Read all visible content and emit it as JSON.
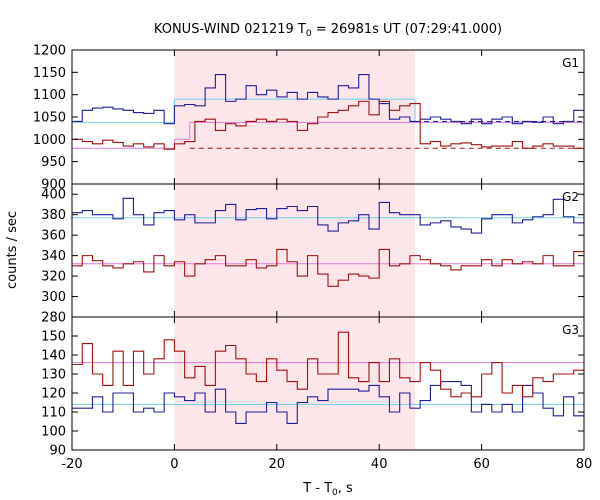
{
  "colors": {
    "series_blue": "#1f1f9a",
    "series_red": "#a01010",
    "fit_cyan": "#6fd0e8",
    "fit_magenta": "#e07ad8",
    "shade": "#fde6ea"
  },
  "chart_data": {
    "type": "line",
    "title": "KONUS-WIND 021219 T",
    "title_sub": "0",
    "title_tail": " = 26981s UT (07:29:41.000)",
    "xlabel": "T - T",
    "xlabel_sub": "0",
    "xlabel_tail": ", s",
    "ylabel": "counts / sec",
    "xlim": [
      -20,
      80
    ],
    "xticks": [
      -20,
      0,
      20,
      40,
      60,
      80
    ],
    "shaded_interval": [
      0,
      47
    ],
    "panels": [
      {
        "name": "G1",
        "ylim": [
          900,
          1200
        ],
        "yticks": [
          900,
          950,
          1000,
          1050,
          1100,
          1150,
          1200
        ],
        "series": [
          {
            "color": "series_blue",
            "x": [
              -20,
              -18,
              -16,
              -14,
              -12,
              -10,
              -8,
              -6,
              -4,
              -2,
              0,
              2,
              4,
              6,
              8,
              10,
              12,
              14,
              16,
              18,
              20,
              22,
              24,
              26,
              28,
              30,
              32,
              34,
              36,
              38,
              40,
              42,
              44,
              46,
              48,
              50,
              52,
              54,
              56,
              58,
              60,
              62,
              64,
              66,
              68,
              70,
              72,
              74,
              76,
              78,
              80
            ],
            "y": [
              1040,
              1065,
              1070,
              1072,
              1068,
              1065,
              1060,
              1058,
              1065,
              1035,
              1075,
              1078,
              1075,
              1115,
              1145,
              1085,
              1090,
              1120,
              1100,
              1110,
              1095,
              1105,
              1090,
              1105,
              1095,
              1090,
              1120,
              1115,
              1145,
              1090,
              1080,
              1045,
              1050,
              1040,
              1045,
              1050,
              1045,
              1040,
              1035,
              1045,
              1035,
              1045,
              1050,
              1035,
              1040,
              1038,
              1050,
              1035,
              1040,
              1065,
              1065
            ]
          },
          {
            "color": "series_red",
            "x": [
              -20,
              -18,
              -16,
              -14,
              -12,
              -10,
              -8,
              -6,
              -4,
              -2,
              0,
              2,
              4,
              6,
              8,
              10,
              12,
              14,
              16,
              18,
              20,
              22,
              24,
              26,
              28,
              30,
              32,
              34,
              36,
              38,
              40,
              42,
              44,
              46,
              48,
              50,
              52,
              54,
              56,
              58,
              60,
              62,
              64,
              66,
              68,
              70,
              72,
              74,
              76,
              78,
              80
            ],
            "y": [
              1000,
              995,
              990,
              998,
              993,
              985,
              990,
              983,
              990,
              978,
              990,
              995,
              1040,
              1045,
              1020,
              1035,
              1030,
              1040,
              1045,
              1040,
              1045,
              1040,
              1020,
              1035,
              1050,
              1060,
              1065,
              1075,
              1085,
              1055,
              1085,
              1065,
              1075,
              1080,
              990,
              995,
              985,
              990,
              992,
              988,
              983,
              985,
              985,
              995,
              980,
              985,
              990,
              985,
              985,
              980,
              980
            ]
          }
        ],
        "fits": [
          {
            "color": "fit_cyan",
            "dash": false,
            "segments": [
              [
                -20,
                0,
                1038
              ],
              [
                0,
                3,
                1090
              ],
              [
                3,
                47,
                1090
              ],
              [
                47,
                80,
                1038
              ]
            ]
          },
          {
            "color": "fit_magenta",
            "dash": false,
            "segments": [
              [
                -20,
                0,
                980
              ],
              [
                0,
                3,
                1000
              ],
              [
                3,
                47,
                1038
              ],
              [
                47,
                80,
                1038
              ]
            ]
          },
          {
            "color": "series_blue",
            "dash": true,
            "segments": [
              [
                47,
                80,
                1040
              ]
            ]
          },
          {
            "color": "series_red",
            "dash": true,
            "segments": [
              [
                3,
                80,
                980
              ]
            ]
          }
        ]
      },
      {
        "name": "G2",
        "ylim": [
          280,
          410
        ],
        "yticks": [
          280,
          300,
          320,
          340,
          360,
          380,
          400
        ],
        "series": [
          {
            "color": "series_blue",
            "x": [
              -20,
              -18,
              -16,
              -14,
              -12,
              -10,
              -8,
              -6,
              -4,
              -2,
              0,
              2,
              4,
              6,
              8,
              10,
              12,
              14,
              16,
              18,
              20,
              22,
              24,
              26,
              28,
              30,
              32,
              34,
              36,
              38,
              40,
              42,
              44,
              46,
              48,
              50,
              52,
              54,
              56,
              58,
              60,
              62,
              64,
              66,
              68,
              70,
              72,
              74,
              76,
              78,
              80
            ],
            "y": [
              382,
              384,
              380,
              380,
              376,
              396,
              380,
              370,
              382,
              384,
              375,
              380,
              372,
              372,
              384,
              390,
              375,
              385,
              386,
              376,
              386,
              388,
              384,
              388,
              370,
              364,
              372,
              374,
              380,
              366,
              392,
              382,
              380,
              380,
              370,
              372,
              374,
              368,
              366,
              362,
              376,
              380,
              380,
              372,
              375,
              378,
              380,
              395,
              378,
              372,
              370
            ]
          },
          {
            "color": "series_red",
            "x": [
              -20,
              -18,
              -16,
              -14,
              -12,
              -10,
              -8,
              -6,
              -4,
              -2,
              0,
              2,
              4,
              6,
              8,
              10,
              12,
              14,
              16,
              18,
              20,
              22,
              24,
              26,
              28,
              30,
              32,
              34,
              36,
              38,
              40,
              42,
              44,
              46,
              48,
              50,
              52,
              54,
              56,
              58,
              60,
              62,
              64,
              66,
              68,
              70,
              72,
              74,
              76,
              78,
              80
            ],
            "y": [
              330,
              340,
              335,
              330,
              328,
              332,
              334,
              324,
              340,
              330,
              334,
              320,
              332,
              336,
              340,
              330,
              330,
              336,
              328,
              330,
              346,
              334,
              320,
              340,
              322,
              310,
              316,
              322,
              320,
              318,
              346,
              330,
              332,
              340,
              336,
              332,
              330,
              326,
              330,
              330,
              336,
              330,
              336,
              332,
              334,
              332,
              340,
              330,
              330,
              344,
              330
            ]
          }
        ],
        "fits": [
          {
            "color": "fit_cyan",
            "dash": false,
            "segments": [
              [
                -20,
                80,
                377
              ]
            ]
          },
          {
            "color": "fit_magenta",
            "dash": false,
            "segments": [
              [
                -20,
                80,
                332
              ]
            ]
          }
        ]
      },
      {
        "name": "G3",
        "ylim": [
          90,
          160
        ],
        "yticks": [
          90,
          100,
          110,
          120,
          130,
          140,
          150
        ],
        "series": [
          {
            "color": "series_blue",
            "x": [
              -20,
              -18,
              -16,
              -14,
              -12,
              -10,
              -8,
              -6,
              -4,
              -2,
              0,
              2,
              4,
              6,
              8,
              10,
              12,
              14,
              16,
              18,
              20,
              22,
              24,
              26,
              28,
              30,
              32,
              34,
              36,
              38,
              40,
              42,
              44,
              46,
              48,
              50,
              52,
              54,
              56,
              58,
              60,
              62,
              64,
              66,
              68,
              70,
              72,
              74,
              76,
              78,
              80
            ],
            "y": [
              112,
              112,
              118,
              110,
              120,
              120,
              110,
              112,
              110,
              120,
              118,
              116,
              120,
              110,
              122,
              110,
              104,
              110,
              110,
              115,
              110,
              104,
              115,
              118,
              116,
              122,
              122,
              122,
              121,
              124,
              118,
              110,
              120,
              112,
              116,
              124,
              126,
              126,
              124,
              110,
              114,
              110,
              114,
              110,
              124,
              120,
              112,
              108,
              118,
              108,
              110
            ]
          },
          {
            "color": "series_red",
            "x": [
              -20,
              -18,
              -16,
              -14,
              -12,
              -10,
              -8,
              -6,
              -4,
              -2,
              0,
              2,
              4,
              6,
              8,
              10,
              12,
              14,
              16,
              18,
              20,
              22,
              24,
              26,
              28,
              30,
              32,
              34,
              36,
              38,
              40,
              42,
              44,
              46,
              48,
              50,
              52,
              54,
              56,
              58,
              60,
              62,
              64,
              66,
              68,
              70,
              72,
              74,
              76,
              78,
              80
            ],
            "y": [
              135,
              146,
              130,
              124,
              142,
              124,
              142,
              130,
              138,
              148,
              142,
              128,
              134,
              124,
              142,
              145,
              138,
              130,
              126,
              138,
              132,
              126,
              122,
              138,
              130,
              130,
              152,
              128,
              126,
              136,
              126,
              138,
              128,
              126,
              136,
              132,
              122,
              118,
              120,
              118,
              130,
              136,
              120,
              124,
              118,
              128,
              126,
              130,
              130,
              132,
              148
            ]
          }
        ],
        "fits": [
          {
            "color": "fit_cyan",
            "dash": false,
            "segments": [
              [
                -20,
                80,
                114
              ]
            ]
          },
          {
            "color": "fit_magenta",
            "dash": false,
            "segments": [
              [
                -20,
                80,
                136
              ]
            ]
          }
        ]
      }
    ]
  }
}
